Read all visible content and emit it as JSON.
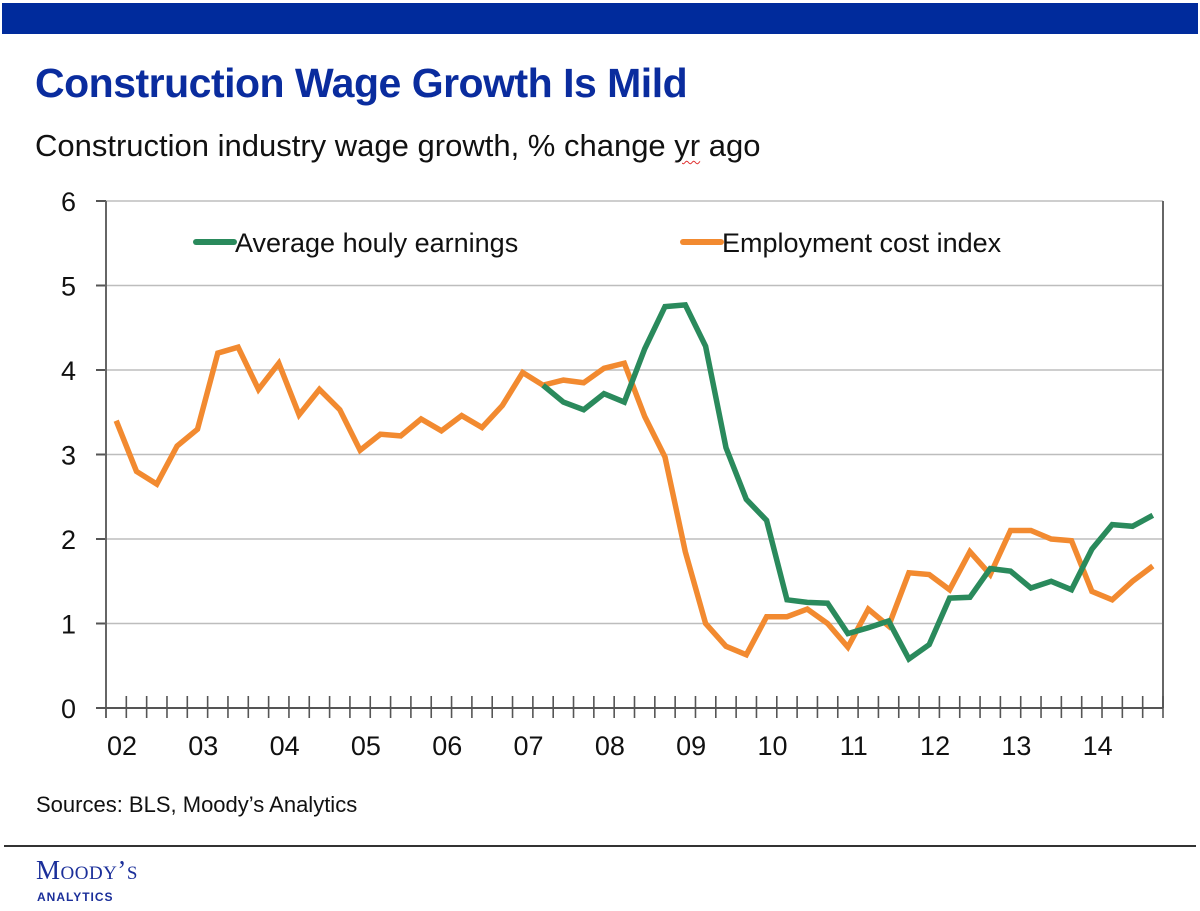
{
  "header": {
    "title": "Construction Wage Growth Is Mild",
    "subtitle_pre": "Construction industry wage growth, % change ",
    "subtitle_squiggle": "yr",
    "subtitle_post": " ago"
  },
  "footer": {
    "sources": "Sources: BLS, Moody’s Analytics",
    "logo_main": "Moody’s",
    "logo_sub": "ANALYTICS"
  },
  "colors": {
    "brand_blue": "#002B9C",
    "ahe_green": "#2A8A5C",
    "eci_orange": "#F28A30"
  },
  "chart_data": {
    "type": "line",
    "title": "Construction Wage Growth Is Mild",
    "subtitle": "Construction industry wage growth, % change yr ago",
    "xlabel": "",
    "ylabel": "",
    "ylim": [
      0,
      6
    ],
    "yticks": [
      "0",
      "1",
      "2",
      "3",
      "4",
      "5",
      "6"
    ],
    "grid": true,
    "legend": "top",
    "frequency": "quarterly",
    "x_start": "2002Q1",
    "x_end": "2014Q4",
    "xtick_labels": [
      "02",
      "03",
      "04",
      "05",
      "06",
      "07",
      "08",
      "09",
      "10",
      "11",
      "12",
      "13",
      "14"
    ],
    "series": [
      {
        "name": "Average houly earnings",
        "color": "#2A8A5C",
        "start_index": 21,
        "values": [
          3.82,
          3.62,
          3.53,
          3.72,
          3.62,
          4.25,
          4.75,
          4.77,
          4.28,
          3.08,
          2.47,
          2.22,
          1.28,
          1.25,
          1.24,
          0.88,
          0.95,
          1.03,
          0.58,
          0.75,
          1.3,
          1.31,
          1.65,
          1.62,
          1.42,
          1.5,
          1.4,
          1.88,
          2.17,
          2.15,
          2.28
        ]
      },
      {
        "name": "Employment cost index",
        "color": "#F28A30",
        "start_index": 0,
        "values": [
          3.4,
          2.8,
          2.65,
          3.1,
          3.3,
          4.2,
          4.27,
          3.77,
          4.08,
          3.47,
          3.77,
          3.53,
          3.05,
          3.24,
          3.22,
          3.42,
          3.28,
          3.46,
          3.32,
          3.58,
          3.97,
          3.82,
          3.88,
          3.85,
          4.02,
          4.08,
          3.45,
          2.97,
          1.85,
          1.0,
          0.73,
          0.63,
          1.08,
          1.08,
          1.17,
          1.0,
          0.72,
          1.17,
          0.97,
          1.6,
          1.58,
          1.4,
          1.85,
          1.58,
          2.1,
          2.1,
          2.0,
          1.98,
          1.38,
          1.28,
          1.5,
          1.68
        ]
      }
    ]
  }
}
